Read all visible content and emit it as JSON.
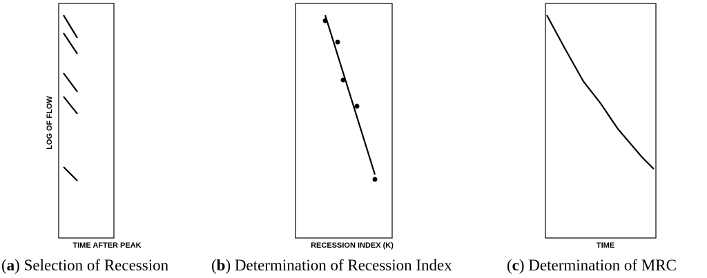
{
  "panels": [
    {
      "x_label": "TIME AFTER PEAK",
      "y_label": "LOG OF FLOW",
      "caption": [
        "(",
        "a",
        ") Selection of Recession"
      ]
    },
    {
      "x_label": "RECESSION INDEX (K)",
      "caption": [
        "(",
        "b",
        ") Determination of Recession Index"
      ]
    },
    {
      "x_label": "TIME",
      "caption": [
        "(",
        "c",
        ") Determination of MRC"
      ]
    }
  ]
}
